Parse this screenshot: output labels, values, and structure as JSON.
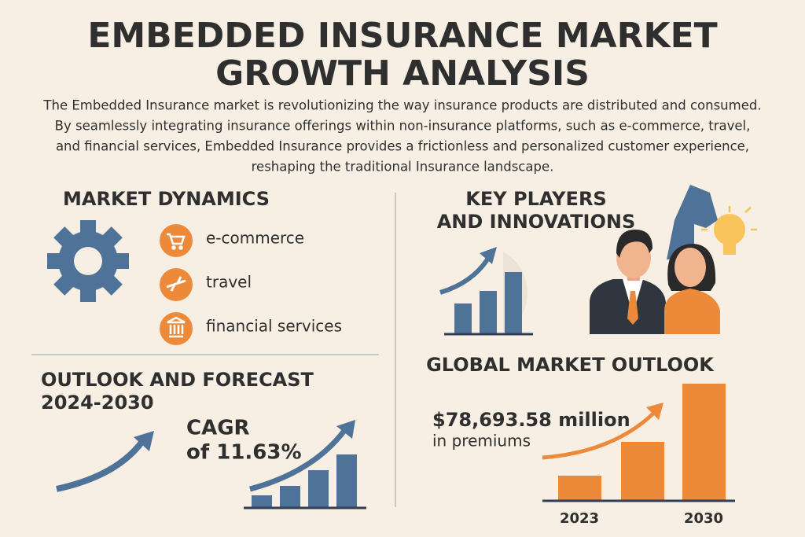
{
  "header": {
    "title_lines": [
      "EMBEDDED INSURANCE MARKET",
      "GROWTH ANALYSIS"
    ],
    "intro_lines": [
      "The Embedded Insurance market is revolutionizing the way insurance products are distributed and consumed.",
      "By seamlessly integrating insurance offerings within non-insurance platforms, such as e-commerce, travel,",
      "and financial services, Embedded Insurance provides a frictionless and personalized customer experience,",
      "reshaping the traditional Insurance landscape."
    ]
  },
  "market_dynamics": {
    "heading": "MARKET DYNAMICS",
    "items": [
      "e-commerce",
      "travel",
      "financial services"
    ]
  },
  "key_players": {
    "heading_lines": [
      "KEY PLAYERS",
      "AND INNOVATIONS"
    ]
  },
  "outlook": {
    "heading_lines": [
      "OUTLOOK AND FORECAST",
      "2024-2030"
    ],
    "cagr_lines": [
      "CAGR",
      "of 11.63%"
    ]
  },
  "global_outlook": {
    "heading": "GLOBAL MARKET OUTLOOK",
    "value": "$78,693.58 million",
    "subtext": "in premiums",
    "years": [
      "2023",
      "2030"
    ]
  }
}
